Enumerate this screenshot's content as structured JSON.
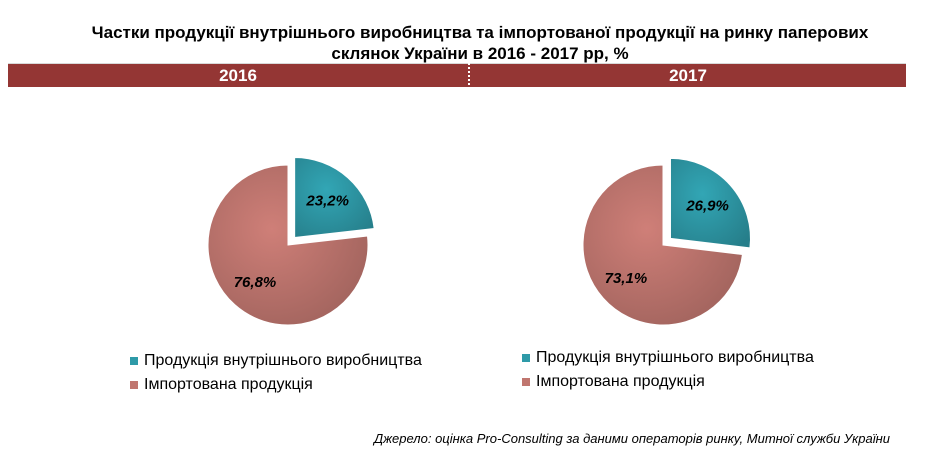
{
  "title": "Частки продукції внутрішнього виробництва та імпортованої продукції на ринку паперових склянок України в 2016 - 2017 рр, %",
  "colors": {
    "domestic": "#2e9aa8",
    "imported": "#c0766f",
    "band": "#943634"
  },
  "chart_data": [
    {
      "type": "pie",
      "title": "2016",
      "categories": [
        "Продукція внутрішнього виробництва",
        "Імпортована продукція"
      ],
      "values": [
        23.2,
        76.8
      ],
      "labels": [
        "23,2%",
        "76,8%"
      ],
      "exploded": [
        true,
        false
      ],
      "legend": "bottom"
    },
    {
      "type": "pie",
      "title": "2017",
      "categories": [
        "Продукція внутрішнього виробництва",
        "Імпортована продукція"
      ],
      "values": [
        26.9,
        73.1
      ],
      "labels": [
        "26,9%",
        "73,1%"
      ],
      "exploded": [
        true,
        false
      ],
      "legend": "bottom"
    }
  ],
  "source": "Джерело: оцінка Pro-Consulting за даними операторів ринку, Митної служби України"
}
